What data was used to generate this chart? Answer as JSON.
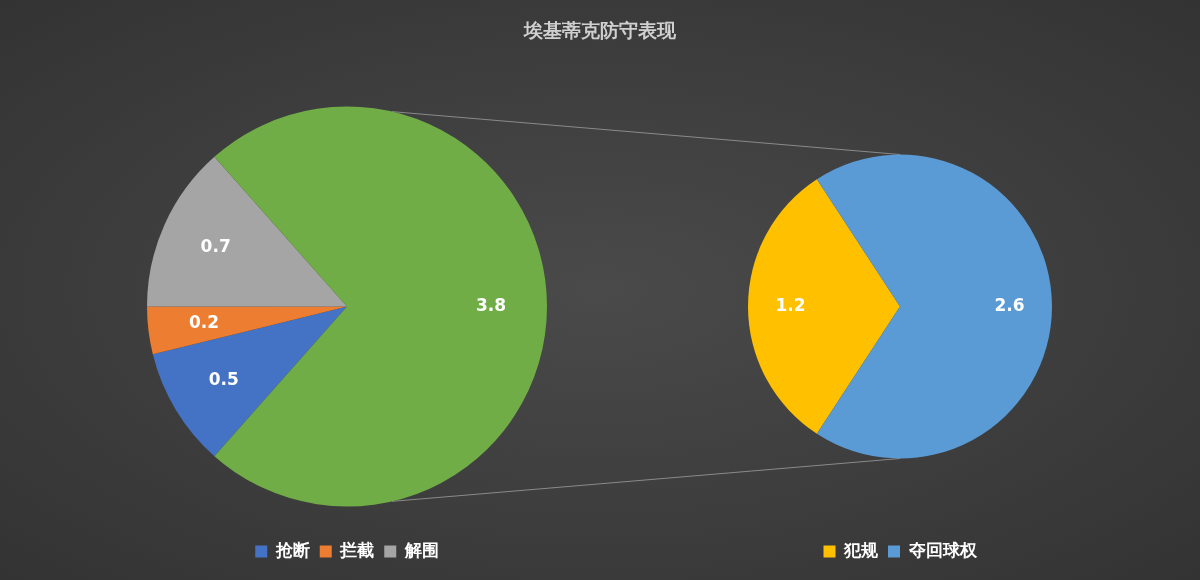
{
  "chart_data": [
    {
      "type": "pie",
      "title": "埃基蒂克防守表现",
      "categories": [
        "抢断",
        "拦截",
        "解围",
        null
      ],
      "values": [
        0.5,
        0.2,
        0.7,
        3.8
      ],
      "colors": [
        "#4472c4",
        "#ed7d31",
        "#a5a5a5",
        "#70ad47"
      ],
      "data_labels": true,
      "legend": "bottom"
    },
    {
      "type": "pie",
      "categories": [
        "犯规",
        "夺回球权"
      ],
      "values": [
        1.2,
        2.6
      ],
      "colors": [
        "#ffc000",
        "#5b9bd5"
      ],
      "data_labels": true,
      "legend": "bottom"
    }
  ]
}
